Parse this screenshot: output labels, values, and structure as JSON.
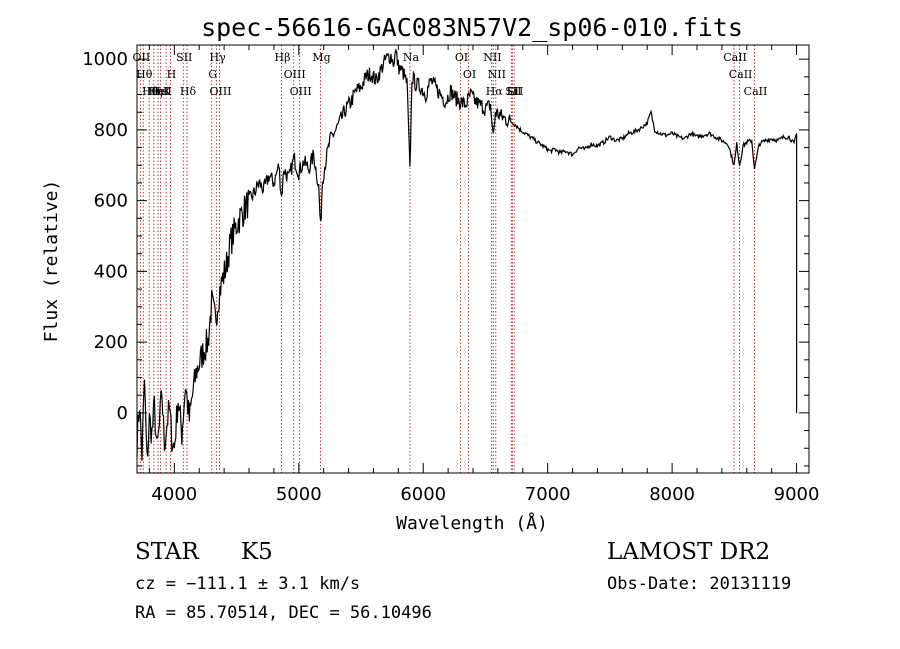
{
  "chart_data": {
    "type": "line",
    "title": "spec-56616-GAC083N57V2_sp06-010.fits",
    "xlabel": "Wavelength (Å)",
    "ylabel": "Flux (relative)",
    "xlim": [
      3700,
      9100
    ],
    "ylim": [
      -170,
      1040
    ],
    "xticks": [
      4000,
      5000,
      6000,
      7000,
      8000,
      9000
    ],
    "yticks": [
      0,
      200,
      400,
      600,
      800,
      1000
    ],
    "series": [
      {
        "x": [
          3700,
          3720,
          3740,
          3760,
          3780,
          3800,
          3820,
          3840,
          3860,
          3880,
          3900,
          3920,
          3940,
          3960,
          3980,
          4000,
          4030,
          4060,
          4090,
          4120,
          4150,
          4180,
          4210,
          4240,
          4270,
          4300,
          4330,
          4360,
          4390,
          4420,
          4450,
          4480,
          4510,
          4540,
          4570,
          4600,
          4640,
          4680,
          4720,
          4760,
          4800,
          4840,
          4861,
          4880,
          4920,
          4960,
          5000,
          5040,
          5080,
          5120,
          5160,
          5175,
          5190,
          5220,
          5260,
          5300,
          5340,
          5380,
          5420,
          5460,
          5500,
          5540,
          5580,
          5620,
          5660,
          5700,
          5740,
          5760,
          5780,
          5800,
          5840,
          5870,
          5893,
          5910,
          5940,
          5980,
          6020,
          6060,
          6100,
          6140,
          6180,
          6220,
          6260,
          6300,
          6340,
          6380,
          6420,
          6460,
          6500,
          6540,
          6563,
          6580,
          6620,
          6660,
          6700,
          6740,
          6780,
          6820,
          6860,
          6900,
          6940,
          6980,
          7020,
          7060,
          7100,
          7150,
          7200,
          7250,
          7300,
          7350,
          7400,
          7450,
          7500,
          7550,
          7600,
          7650,
          7700,
          7750,
          7800,
          7830,
          7860,
          7900,
          7950,
          8000,
          8050,
          8100,
          8150,
          8200,
          8250,
          8300,
          8350,
          8400,
          8450,
          8498,
          8520,
          8542,
          8570,
          8600,
          8640,
          8662,
          8700,
          8750,
          8800,
          8850,
          8900,
          8940,
          8980,
          9000
        ],
        "y": [
          -80,
          30,
          -120,
          90,
          -140,
          -20,
          -60,
          20,
          -110,
          -40,
          60,
          -90,
          -30,
          10,
          -70,
          -100,
          40,
          -60,
          80,
          -20,
          60,
          120,
          150,
          180,
          200,
          310,
          260,
          340,
          380,
          420,
          480,
          510,
          540,
          560,
          580,
          600,
          620,
          650,
          630,
          670,
          650,
          700,
          610,
          690,
          660,
          720,
          680,
          710,
          690,
          730,
          640,
          520,
          660,
          720,
          780,
          800,
          830,
          860,
          880,
          910,
          920,
          950,
          960,
          940,
          970,
          1000,
          1010,
          990,
          1020,
          980,
          960,
          930,
          680,
          950,
          930,
          920,
          900,
          940,
          920,
          900,
          880,
          910,
          890,
          880,
          870,
          900,
          880,
          870,
          860,
          870,
          780,
          850,
          840,
          830,
          825,
          815,
          800,
          790,
          780,
          770,
          760,
          750,
          740,
          745,
          735,
          740,
          730,
          750,
          745,
          760,
          755,
          765,
          780,
          770,
          775,
          790,
          795,
          805,
          820,
          850,
          800,
          790,
          785,
          790,
          780,
          775,
          790,
          780,
          785,
          790,
          780,
          770,
          760,
          700,
          760,
          700,
          755,
          765,
          770,
          690,
          760,
          770,
          775,
          770,
          780,
          780,
          760,
          790
        ]
      }
    ],
    "lines": [
      {
        "wave": 3727,
        "label": "OII"
      },
      {
        "wave": 3750,
        "label": "Hθ"
      },
      {
        "wave": 3798,
        "label": "Hθ"
      },
      {
        "wave": 3835,
        "label": "Hη"
      },
      {
        "wave": 3869,
        "label": "HeI"
      },
      {
        "wave": 3889,
        "label": "HeI"
      },
      {
        "wave": 3934,
        "label": "K"
      },
      {
        "wave": 3969,
        "label": "H"
      },
      {
        "wave": 4072,
        "label": "SII"
      },
      {
        "wave": 4102,
        "label": "Hδ"
      },
      {
        "wave": 4300,
        "label": "G"
      },
      {
        "wave": 4340,
        "label": "Hγ"
      },
      {
        "wave": 4363,
        "label": "OIII"
      },
      {
        "wave": 4861,
        "label": "Hβ"
      },
      {
        "wave": 4959,
        "label": "OIII"
      },
      {
        "wave": 5007,
        "label": "OIII"
      },
      {
        "wave": 5175,
        "label": "Mg"
      },
      {
        "wave": 5893,
        "label": "Na"
      },
      {
        "wave": 6300,
        "label": "OI"
      },
      {
        "wave": 6364,
        "label": "OI"
      },
      {
        "wave": 6548,
        "label": "NII"
      },
      {
        "wave": 6563,
        "label": "Hα"
      },
      {
        "wave": 6583,
        "label": "NII"
      },
      {
        "wave": 6708,
        "label": "Li"
      },
      {
        "wave": 6716,
        "label": "SII"
      },
      {
        "wave": 6731,
        "label": "SII"
      },
      {
        "wave": 8498,
        "label": "CaII"
      },
      {
        "wave": 8542,
        "label": "CaII"
      },
      {
        "wave": 8662,
        "label": "CaII"
      }
    ],
    "grid": false,
    "legend": "none"
  },
  "info": {
    "class": "STAR",
    "subclass": "K5",
    "survey": "LAMOST DR2",
    "cz": "cz = −111.1 ± 3.1 km/s",
    "obs_date": "Obs-Date: 20131119",
    "coords": "RA =  85.70514, DEC =  56.10496"
  }
}
